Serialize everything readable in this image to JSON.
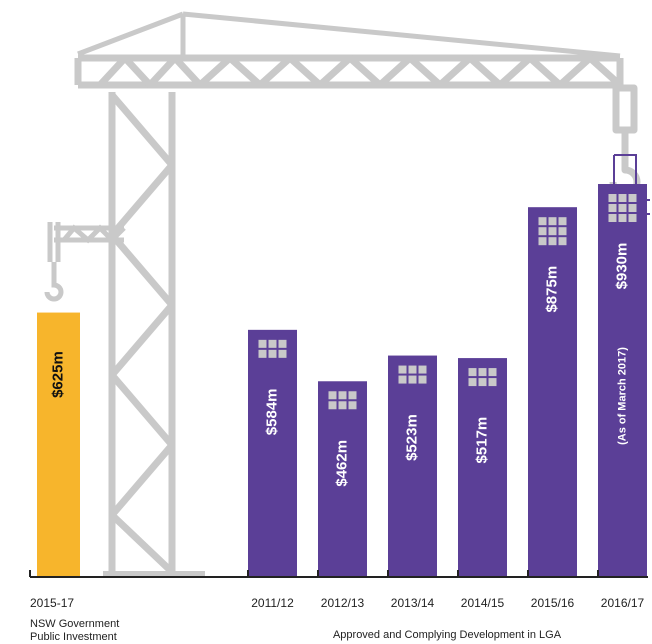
{
  "chart_data": {
    "type": "bar",
    "categories": [
      "2015-17",
      "2011/12",
      "2012/13",
      "2013/14",
      "2014/15",
      "2015/16",
      "2016/17"
    ],
    "values": [
      625,
      584,
      462,
      523,
      517,
      875,
      930
    ],
    "value_labels": [
      "$625m",
      "$584m",
      "$462m",
      "$523m",
      "$517m",
      "$875m",
      "$930m"
    ],
    "value_notes": [
      null,
      null,
      null,
      null,
      null,
      null,
      "(As of March 2017)"
    ],
    "colors": [
      "#f7b52c",
      "#5b3f97",
      "#5b3f97",
      "#5b3f97",
      "#5b3f97",
      "#5b3f97",
      "#5b3f97"
    ],
    "groups": [
      {
        "lines": [
          "NSW Government",
          "Public Investment"
        ]
      },
      {
        "lines": [
          "Approved and Complying Development in LGA"
        ]
      }
    ]
  }
}
